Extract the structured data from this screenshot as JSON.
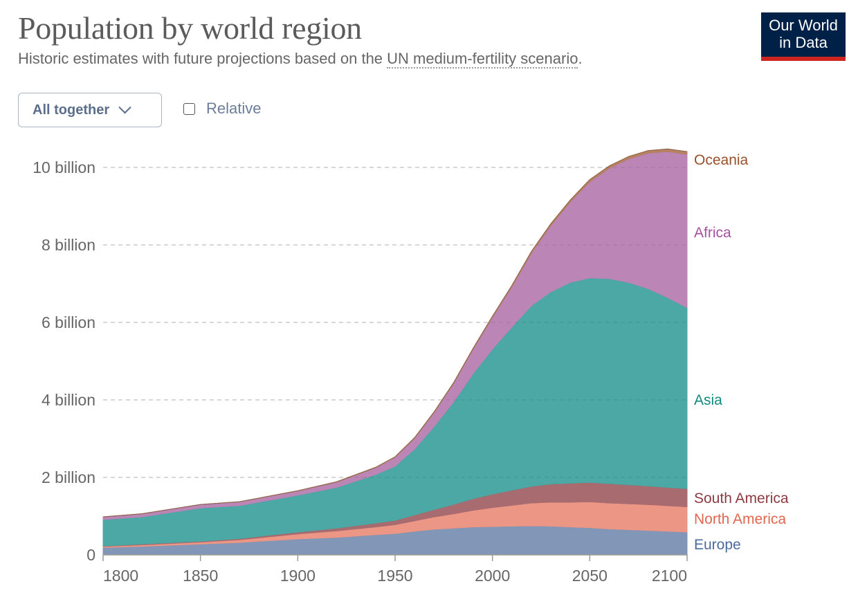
{
  "header": {
    "title": "Population by world region",
    "subtitle_prefix": "Historic estimates with future projections based on the ",
    "subtitle_link": "UN medium-fertility scenario",
    "subtitle_suffix": "."
  },
  "logo": {
    "line1": "Our World",
    "line2": "in Data"
  },
  "controls": {
    "dropdown_value": "All together",
    "relative_label": "Relative",
    "relative_checked": false
  },
  "chart_data": {
    "type": "area",
    "stacked": true,
    "title": "Population by world region",
    "xlabel": "",
    "ylabel": "",
    "xlim": [
      1800,
      2100
    ],
    "ylim": [
      0,
      10.4
    ],
    "yunit": "billion",
    "grid": true,
    "legend": "right-inline",
    "x_ticks": [
      {
        "v": 1800,
        "label": "1800"
      },
      {
        "v": 1850,
        "label": "1850"
      },
      {
        "v": 1900,
        "label": "1900"
      },
      {
        "v": 1950,
        "label": "1950"
      },
      {
        "v": 2000,
        "label": "2000"
      },
      {
        "v": 2050,
        "label": "2050"
      },
      {
        "v": 2100,
        "label": "2100"
      }
    ],
    "y_ticks": [
      {
        "v": 0,
        "label": "0"
      },
      {
        "v": 2,
        "label": "2 billion"
      },
      {
        "v": 4,
        "label": "4 billion"
      },
      {
        "v": 6,
        "label": "6 billion"
      },
      {
        "v": 8,
        "label": "8 billion"
      },
      {
        "v": 10,
        "label": "10 billion"
      }
    ],
    "x": [
      1800,
      1820,
      1850,
      1870,
      1900,
      1920,
      1940,
      1950,
      1960,
      1970,
      1980,
      1990,
      2000,
      2010,
      2020,
      2030,
      2040,
      2050,
      2060,
      2070,
      2080,
      2090,
      2100
    ],
    "series": [
      {
        "name": "Europe",
        "fill": "#8297b7",
        "label_color": "#4c6a9c",
        "values": [
          0.19,
          0.22,
          0.28,
          0.32,
          0.41,
          0.45,
          0.52,
          0.55,
          0.61,
          0.66,
          0.69,
          0.72,
          0.73,
          0.74,
          0.75,
          0.74,
          0.72,
          0.7,
          0.67,
          0.65,
          0.63,
          0.61,
          0.59
        ]
      },
      {
        "name": "North America",
        "fill": "#ec9686",
        "label_color": "#e0674e",
        "values": [
          0.03,
          0.04,
          0.05,
          0.07,
          0.13,
          0.17,
          0.2,
          0.23,
          0.27,
          0.32,
          0.37,
          0.43,
          0.49,
          0.54,
          0.59,
          0.62,
          0.64,
          0.67,
          0.67,
          0.67,
          0.67,
          0.66,
          0.65
        ]
      },
      {
        "name": "South America",
        "fill": "#a86c70",
        "label_color": "#8c3a42",
        "values": [
          0.01,
          0.02,
          0.02,
          0.03,
          0.05,
          0.07,
          0.1,
          0.11,
          0.15,
          0.19,
          0.24,
          0.3,
          0.35,
          0.39,
          0.43,
          0.47,
          0.49,
          0.5,
          0.5,
          0.49,
          0.48,
          0.47,
          0.47
        ]
      },
      {
        "name": "Asia",
        "fill": "#4ba8a5",
        "label_color": "#0f8a80",
        "values": [
          0.68,
          0.7,
          0.86,
          0.85,
          0.95,
          1.05,
          1.25,
          1.4,
          1.7,
          2.14,
          2.64,
          3.22,
          3.74,
          4.21,
          4.66,
          4.96,
          5.18,
          5.28,
          5.29,
          5.22,
          5.09,
          4.9,
          4.67
        ]
      },
      {
        "name": "Africa",
        "fill": "#bb86b6",
        "label_color": "#a652a0",
        "values": [
          0.07,
          0.08,
          0.09,
          0.1,
          0.11,
          0.14,
          0.18,
          0.23,
          0.28,
          0.36,
          0.48,
          0.63,
          0.82,
          1.04,
          1.36,
          1.71,
          2.08,
          2.48,
          2.85,
          3.19,
          3.5,
          3.77,
          3.96
        ]
      },
      {
        "name": "Oceania",
        "fill": "#b88160",
        "label_color": "#9a5129",
        "values": [
          0.002,
          0.002,
          0.002,
          0.003,
          0.006,
          0.009,
          0.011,
          0.013,
          0.016,
          0.02,
          0.023,
          0.027,
          0.031,
          0.037,
          0.043,
          0.048,
          0.052,
          0.057,
          0.06,
          0.063,
          0.066,
          0.068,
          0.069
        ]
      }
    ]
  }
}
